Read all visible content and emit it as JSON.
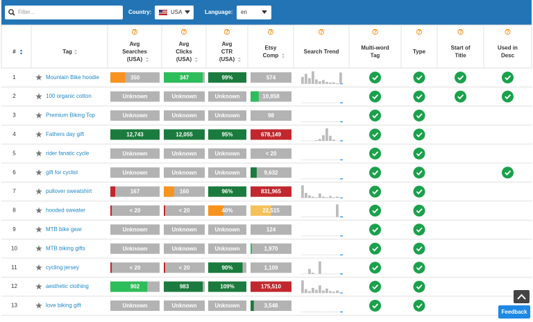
{
  "toolbar": {
    "filter_placeholder": "Filter...",
    "country_label": "Country:",
    "country": "USA",
    "language_label": "Language:",
    "language": "en"
  },
  "table": {
    "columns": [
      [
        "#"
      ],
      [
        "Tag"
      ],
      [
        "Avg",
        "Searches",
        "(USA)"
      ],
      [
        "Avg",
        "Clicks",
        "(USA)"
      ],
      [
        "Avg",
        "CTR",
        "(USA)"
      ],
      [
        "Etsy",
        "Comp"
      ],
      [
        "Search Trend"
      ],
      [
        "Multi-word",
        "Tag"
      ],
      [
        "Type"
      ],
      [
        "Start of",
        "Title"
      ],
      [
        "Used in",
        "Desc"
      ]
    ],
    "rows": [
      {
        "num": 1,
        "tag": "Mountain Bike hoodie",
        "searches": {
          "text": "350",
          "fill": 0.3,
          "color": "#f7931e"
        },
        "clicks": {
          "text": "347",
          "fill": 0.95,
          "color": "#2dbd5a"
        },
        "ctr": {
          "text": "99%",
          "fill": 1,
          "color": "#1b7a3d"
        },
        "comp": {
          "text": "574"
        },
        "trend": [
          55,
          80,
          45,
          100,
          35,
          20,
          30,
          15,
          10,
          12,
          5,
          90
        ],
        "multi_word": true,
        "type": true,
        "start_of_title": true,
        "used_in_desc": true
      },
      {
        "num": 2,
        "tag": "100 organic cotton",
        "searches": {
          "text": "Unknown"
        },
        "clicks": {
          "text": "Unknown"
        },
        "ctr": {
          "text": "Unknown"
        },
        "comp": {
          "text": "10,858",
          "fill": 0.2,
          "color": "#2dbd5a"
        },
        "trend": null,
        "multi_word": true,
        "type": true,
        "start_of_title": true,
        "used_in_desc": true
      },
      {
        "num": 3,
        "tag": "Premium Biking Top",
        "searches": {
          "text": "Unknown"
        },
        "clicks": {
          "text": "Unknown"
        },
        "ctr": {
          "text": "Unknown"
        },
        "comp": {
          "text": "98"
        },
        "trend": null,
        "multi_word": true,
        "type": true,
        "start_of_title": false,
        "used_in_desc": false
      },
      {
        "num": 4,
        "tag": "Fathers day gift",
        "searches": {
          "text": "12,743",
          "fill": 1,
          "color": "#1b7a3d"
        },
        "clicks": {
          "text": "12,055",
          "fill": 1,
          "color": "#1b7a3d"
        },
        "ctr": {
          "text": "95%",
          "fill": 1,
          "color": "#1b7a3d"
        },
        "comp": {
          "text": "678,149",
          "fill": 1,
          "color": "#c1272d"
        },
        "trend": [
          0,
          0,
          0,
          0,
          5,
          15,
          45,
          100,
          40,
          10,
          0,
          0
        ],
        "multi_word": true,
        "type": true,
        "start_of_title": false,
        "used_in_desc": false
      },
      {
        "num": 5,
        "tag": "rider fanatic cycle",
        "searches": {
          "text": "Unknown"
        },
        "clicks": {
          "text": "Unknown"
        },
        "ctr": {
          "text": "Unknown"
        },
        "comp": {
          "text": "< 20"
        },
        "trend": null,
        "multi_word": true,
        "type": true,
        "start_of_title": false,
        "used_in_desc": false
      },
      {
        "num": 6,
        "tag": "gift for cyclist",
        "searches": {
          "text": "Unknown"
        },
        "clicks": {
          "text": "Unknown"
        },
        "ctr": {
          "text": "Unknown"
        },
        "comp": {
          "text": "9,632",
          "fill": 0.15,
          "color": "#1b7a3d"
        },
        "trend": null,
        "multi_word": true,
        "type": true,
        "start_of_title": false,
        "used_in_desc": true
      },
      {
        "num": 7,
        "tag": "pullover sweatshirt",
        "searches": {
          "text": "167",
          "fill": 0.1,
          "color": "#c1272d"
        },
        "clicks": {
          "text": "160",
          "fill": 0.25,
          "color": "#f7931e"
        },
        "ctr": {
          "text": "96%",
          "fill": 1,
          "color": "#1b7a3d"
        },
        "comp": {
          "text": "831,965",
          "fill": 1,
          "color": "#c1272d"
        },
        "trend": [
          100,
          40,
          20,
          10,
          5,
          35,
          10,
          5,
          15,
          5,
          10,
          5
        ],
        "multi_word": true,
        "type": true,
        "start_of_title": false,
        "used_in_desc": false
      },
      {
        "num": 8,
        "tag": "hooded sweater",
        "searches": {
          "text": "< 20",
          "fill": 0.03,
          "color": "#c1272d"
        },
        "clicks": {
          "text": "< 20",
          "fill": 0.03,
          "color": "#c1272d"
        },
        "ctr": {
          "text": "40%",
          "fill": 0.4,
          "color": "#f7931e"
        },
        "comp": {
          "text": "22,515",
          "fill": 0.5,
          "color": "#f5c15a"
        },
        "trend": [
          0,
          0,
          0,
          0,
          0,
          0,
          0,
          0,
          0,
          0,
          100,
          0
        ],
        "multi_word": true,
        "type": true,
        "start_of_title": false,
        "used_in_desc": false
      },
      {
        "num": 9,
        "tag": "MTB bike gear",
        "searches": {
          "text": "Unknown"
        },
        "clicks": {
          "text": "Unknown"
        },
        "ctr": {
          "text": "Unknown"
        },
        "comp": {
          "text": "124"
        },
        "trend": null,
        "multi_word": true,
        "type": true,
        "start_of_title": false,
        "used_in_desc": false
      },
      {
        "num": 10,
        "tag": "MTB biking gifts",
        "searches": {
          "text": "Unknown"
        },
        "clicks": {
          "text": "Unknown"
        },
        "ctr": {
          "text": "Unknown"
        },
        "comp": {
          "text": "1,970",
          "fill": 0.03,
          "color": "#2dbd5a"
        },
        "trend": null,
        "multi_word": true,
        "type": true,
        "start_of_title": false,
        "used_in_desc": false
      },
      {
        "num": 11,
        "tag": "cycling jersey",
        "searches": {
          "text": "< 20",
          "fill": 0.03,
          "color": "#c1272d"
        },
        "clicks": {
          "text": "< 20",
          "fill": 0.03,
          "color": "#c1272d"
        },
        "ctr": {
          "text": "90%",
          "fill": 0.9,
          "color": "#1b7a3d"
        },
        "comp": {
          "text": "1,109"
        },
        "trend": [
          0,
          0,
          40,
          10,
          0,
          100,
          0,
          0,
          0,
          0,
          0,
          0
        ],
        "multi_word": true,
        "type": true,
        "start_of_title": false,
        "used_in_desc": false
      },
      {
        "num": 12,
        "tag": "aesthetic clothing",
        "searches": {
          "text": "902",
          "fill": 0.75,
          "color": "#2dbd5a"
        },
        "clicks": {
          "text": "983",
          "fill": 0.95,
          "color": "#1b7a3d"
        },
        "ctr": {
          "text": "109%",
          "fill": 1,
          "color": "#1b7a3d"
        },
        "comp": {
          "text": "175,510",
          "fill": 1,
          "color": "#c1272d"
        },
        "trend": [
          100,
          30,
          15,
          40,
          25,
          60,
          20,
          35,
          15,
          10,
          20,
          5
        ],
        "multi_word": true,
        "type": true,
        "start_of_title": false,
        "used_in_desc": false
      },
      {
        "num": 13,
        "tag": "love biking gift",
        "searches": {
          "text": "Unknown"
        },
        "clicks": {
          "text": "Unknown"
        },
        "ctr": {
          "text": "Unknown"
        },
        "comp": {
          "text": "3,548",
          "fill": 0.08,
          "color": "#1b7a3d"
        },
        "trend": null,
        "multi_word": true,
        "type": true,
        "start_of_title": false,
        "used_in_desc": false
      }
    ]
  },
  "feedback": "Feedback"
}
